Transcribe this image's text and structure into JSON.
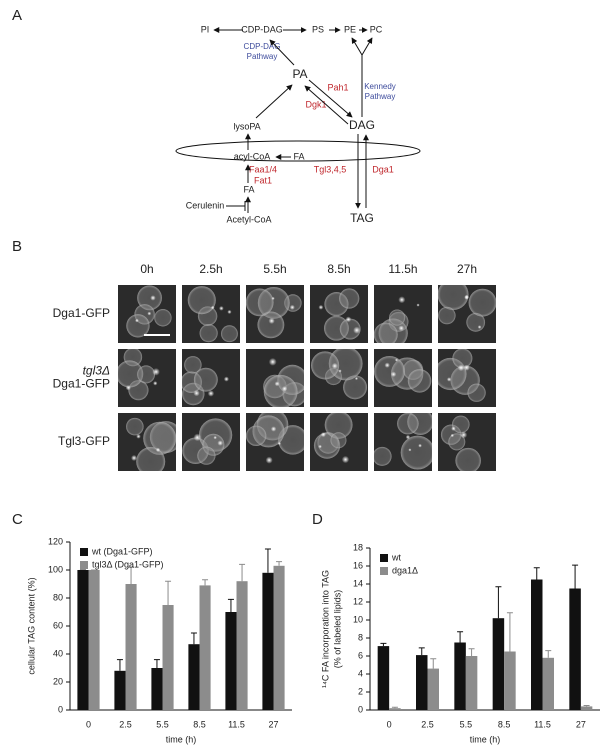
{
  "panel_labels": [
    "A",
    "B",
    "C",
    "D"
  ],
  "pathway": {
    "pi": "PI",
    "cdp_dag": "CDP-DAG",
    "ps": "PS",
    "pe": "PE",
    "pc": "PC",
    "cdp_dag_pathway": [
      "CDP-DAG",
      "Pathway"
    ],
    "pa": "PA",
    "pah1": "Pah1",
    "dgk1": "Dgk1",
    "kennedy_pathway": [
      "Kennedy",
      "Pathway"
    ],
    "dag": "DAG",
    "lysopa": "lysoPA",
    "acyl_coa": "acyl-CoA",
    "fa_right": "FA",
    "faa": [
      "Faa1/4",
      "Fat1"
    ],
    "tgl": "Tgl3,4,5",
    "dga1": "Dga1",
    "fa_lower": "FA",
    "cerulenin": "Cerulenin",
    "acetyl_coa": "Acetyl-CoA",
    "tag": "TAG"
  },
  "micrographs": {
    "times": [
      "0h",
      "2.5h",
      "5.5h",
      "8.5h",
      "11.5h",
      "27h"
    ],
    "rows": [
      [
        "Dga1-GFP"
      ],
      [
        "tgl3Δ",
        "Dga1-GFP"
      ],
      [
        "Tgl3-GFP"
      ]
    ]
  },
  "chart_data": [
    {
      "type": "bar",
      "ylabel": [
        "cellular TAG content (%)"
      ],
      "xlabel": "time (h)",
      "categories": [
        "0",
        "2.5",
        "5.5",
        "8.5",
        "11.5",
        "27"
      ],
      "ylim": [
        0,
        120
      ],
      "yticks": [
        0,
        20,
        40,
        60,
        80,
        100,
        120
      ],
      "series": [
        {
          "name": "wt (Dga1-GFP)",
          "color": "#111111",
          "values": [
            100,
            28,
            30,
            47,
            70,
            98
          ],
          "errors": [
            0,
            8,
            6,
            8,
            9,
            17
          ]
        },
        {
          "name": "tgl3Δ (Dga1-GFP)",
          "color": "#8c8c8c",
          "values": [
            100,
            90,
            75,
            89,
            92,
            103
          ],
          "errors": [
            0,
            12,
            17,
            4,
            12,
            3
          ]
        }
      ]
    },
    {
      "type": "bar",
      "ylabel": [
        "¹⁴C FA incorporation into TAG",
        "(% of labeled lipids)"
      ],
      "xlabel": "time (h)",
      "categories": [
        "0",
        "2.5",
        "5.5",
        "8.5",
        "11.5",
        "27"
      ],
      "ylim": [
        0,
        18
      ],
      "yticks": [
        0,
        2,
        4,
        6,
        8,
        10,
        12,
        14,
        16,
        18
      ],
      "series": [
        {
          "name": "wt",
          "color": "#111111",
          "values": [
            7.1,
            6.1,
            7.5,
            10.2,
            14.5,
            13.5
          ],
          "errors": [
            0.3,
            0.8,
            1.2,
            3.5,
            1.3,
            2.6
          ]
        },
        {
          "name": "dga1Δ",
          "color": "#8c8c8c",
          "values": [
            0.2,
            4.6,
            6,
            6.5,
            5.8,
            0.4
          ],
          "errors": [
            0.1,
            1.1,
            0.8,
            4.3,
            0.8,
            0.1
          ]
        }
      ]
    }
  ]
}
